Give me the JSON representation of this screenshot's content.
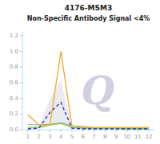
{
  "chart_data": {
    "type": "line",
    "title": "4176-MSM3",
    "subtitle": "Non-Specific Antibody Signal <4%",
    "annotations": [
      {
        "text": "Q",
        "color": "#d0d0e0"
      }
    ],
    "x": [
      1,
      2,
      3,
      4,
      5,
      6,
      7,
      8,
      9,
      10,
      11,
      12
    ],
    "series": [
      {
        "type": "band",
        "color": "#d0d0e0",
        "values": [
          0.018,
          0.036,
          0.396,
          0.63,
          0.036,
          0.018,
          0.018,
          0.018,
          0.018,
          0.018,
          0.018,
          0.018
        ],
        "lower": [
          0.003,
          0.006,
          0.066,
          0.105,
          0.006,
          0.003,
          0.003,
          0.003,
          0.003,
          0.003,
          0.003,
          0.003
        ]
      },
      {
        "color": "#aaaacc",
        "line_style": "solid",
        "values": [
          0.07,
          0.06,
          0.07,
          0.09,
          0.05,
          0.03,
          0.02,
          0.02,
          0.02,
          0.02,
          0.02,
          0.02
        ]
      },
      {
        "color": "#77cc33",
        "line_style": "solid",
        "values": [
          0.03,
          0.03,
          0.06,
          0.08,
          0.03,
          0.02,
          0.02,
          0.02,
          0.02,
          0.01,
          0.01,
          0.01
        ]
      },
      {
        "color": "#2233bb",
        "line_style": "dashed",
        "values": [
          0.01,
          0.02,
          0.22,
          0.35,
          0.02,
          0.01,
          0.01,
          0.01,
          0.01,
          0.01,
          0.01,
          0.01
        ]
      },
      {
        "color": "#f5a623",
        "line_style": "solid",
        "values": [
          0.19,
          0.06,
          0.06,
          1.0,
          0.05,
          0.04,
          0.03,
          0.03,
          0.03,
          0.03,
          0.03,
          0.03
        ]
      }
    ],
    "xlim": [
      0.5,
      12.5
    ],
    "ylim": [
      0,
      1.25
    ],
    "xticks": [
      1,
      2,
      3,
      4,
      5,
      6,
      7,
      8,
      9,
      10,
      11,
      12
    ],
    "yticks": [
      {
        "value": 0,
        "label": "0.0"
      },
      0.2,
      0.4,
      0.6,
      0.8,
      {
        "value": 1.0,
        "label": "1.0"
      },
      1.2
    ],
    "grid": false
  }
}
